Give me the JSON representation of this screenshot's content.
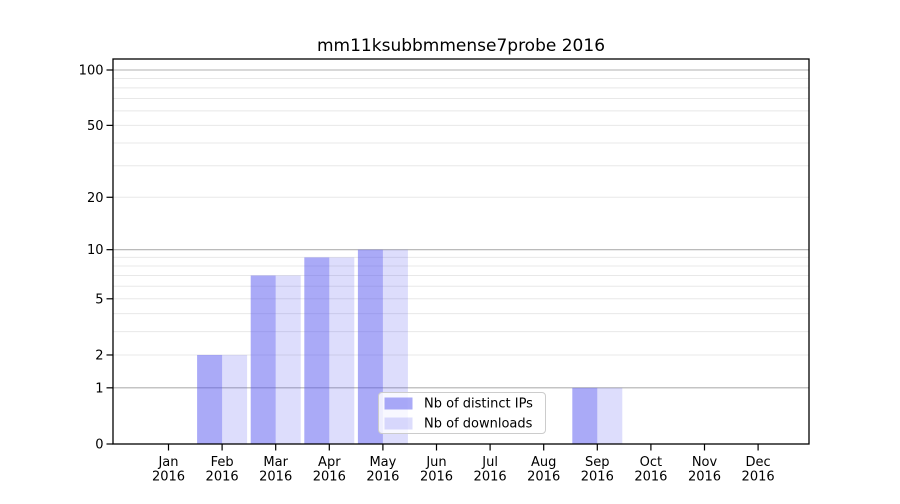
{
  "chart_data": {
    "type": "bar",
    "title": "mm11ksubbmmense7probe 2016",
    "categories": [
      [
        "Jan",
        "2016"
      ],
      [
        "Feb",
        "2016"
      ],
      [
        "Mar",
        "2016"
      ],
      [
        "Apr",
        "2016"
      ],
      [
        "May",
        "2016"
      ],
      [
        "Jun",
        "2016"
      ],
      [
        "Jul",
        "2016"
      ],
      [
        "Aug",
        "2016"
      ],
      [
        "Sep",
        "2016"
      ],
      [
        "Oct",
        "2016"
      ],
      [
        "Nov",
        "2016"
      ],
      [
        "Dec",
        "2016"
      ]
    ],
    "series": [
      {
        "name": "Nb of distinct IPs",
        "values": [
          0,
          2,
          7,
          9,
          10,
          0,
          0,
          0,
          1,
          0,
          0,
          0
        ],
        "color": "#5555f0",
        "opacity": 0.5
      },
      {
        "name": "Nb of downloads",
        "values": [
          0,
          2,
          7,
          9,
          10,
          0,
          0,
          0,
          1,
          0,
          0,
          0
        ],
        "color": "#5555f0",
        "opacity": 0.2
      }
    ],
    "yscale": "log1p",
    "ylim": [
      0,
      115
    ],
    "yticks": [
      0,
      1,
      2,
      5,
      10,
      20,
      50,
      100
    ],
    "gridlines": {
      "major": [
        1,
        10,
        100
      ],
      "minor": [
        2,
        3,
        4,
        5,
        6,
        7,
        8,
        9,
        20,
        30,
        40,
        50,
        60,
        70,
        80,
        90
      ],
      "major_color": "#b0b0b0",
      "minor_color": "#e8e8e8"
    },
    "legend": {
      "labels": [
        "Nb of distinct IPs",
        "Nb of downloads"
      ],
      "border_color": "#cccccc",
      "background": "#ffffff"
    },
    "axis_color": "#000000",
    "background": "#ffffff"
  }
}
